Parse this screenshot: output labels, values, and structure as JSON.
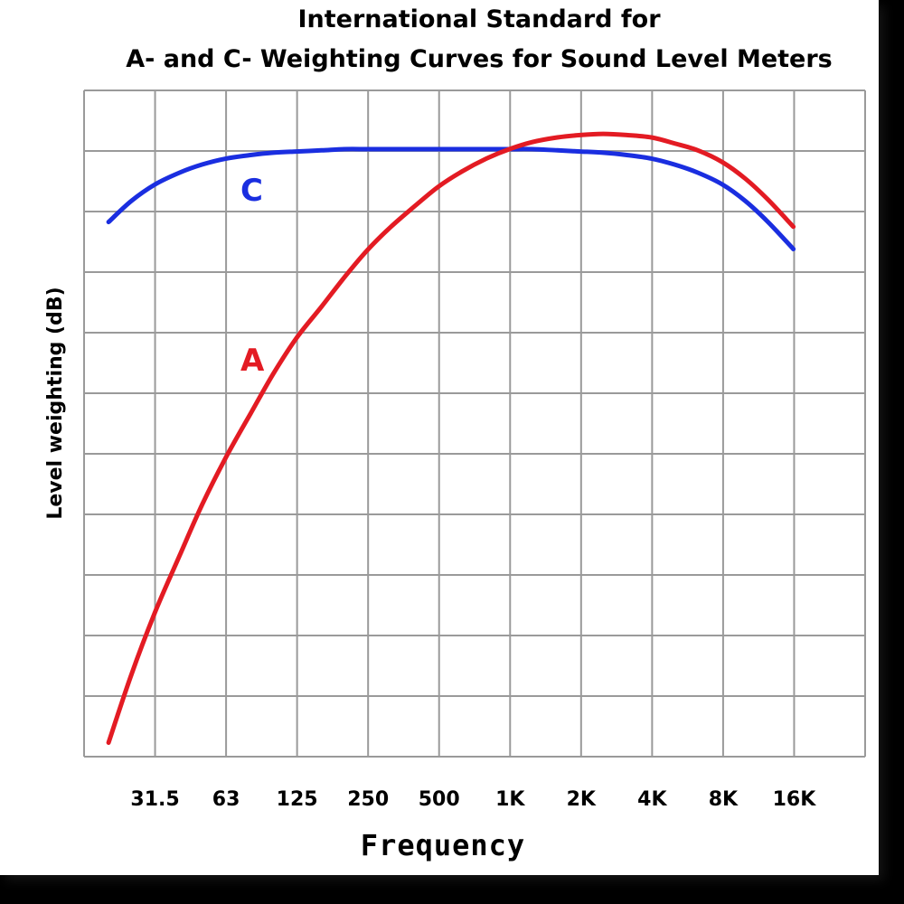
{
  "chart_data": {
    "type": "line",
    "title": "International Standard for",
    "subtitle": "A- and C- Weighting Curves for Sound Level Meters",
    "xlabel": "Frequency",
    "ylabel": "Level weighting (dB)",
    "x_scale": "log",
    "categories": [
      "31.5",
      "63",
      "125",
      "250",
      "500",
      "1K",
      "2K",
      "4K",
      "8K",
      "16K"
    ],
    "grid": true,
    "colors": {
      "A": "#e31b23",
      "C": "#1a2ee0"
    },
    "series": [
      {
        "name": "A",
        "x": [
          20,
          25,
          31.5,
          40,
          50,
          63,
          80,
          100,
          125,
          160,
          200,
          250,
          315,
          400,
          500,
          630,
          800,
          1000,
          1250,
          1600,
          2000,
          2500,
          3150,
          4000,
          5000,
          6300,
          8000,
          10000,
          12500,
          16000,
          20000
        ],
        "values": [
          -50.5,
          -44.7,
          -39.4,
          -34.6,
          -30.2,
          -26.2,
          -22.5,
          -19.1,
          -16.1,
          -13.4,
          -10.9,
          -8.6,
          -6.6,
          -4.8,
          -3.2,
          -1.9,
          -0.8,
          0.0,
          0.6,
          1.0,
          1.2,
          1.3,
          1.2,
          1.0,
          0.5,
          -0.1,
          -1.1,
          -2.5,
          -4.3,
          -6.6,
          -9.3
        ]
      },
      {
        "name": "C",
        "x": [
          20,
          25,
          31.5,
          40,
          50,
          63,
          80,
          100,
          125,
          160,
          200,
          250,
          315,
          400,
          500,
          630,
          800,
          1000,
          1250,
          1600,
          2000,
          2500,
          3150,
          4000,
          5000,
          6300,
          8000,
          10000,
          12500,
          16000,
          20000
        ],
        "values": [
          -6.2,
          -4.4,
          -3.0,
          -2.0,
          -1.3,
          -0.8,
          -0.5,
          -0.3,
          -0.2,
          -0.1,
          0.0,
          0.0,
          0.0,
          0.0,
          0.0,
          0.0,
          0.0,
          0.0,
          0.0,
          -0.1,
          -0.2,
          -0.3,
          -0.5,
          -0.8,
          -1.3,
          -2.0,
          -3.0,
          -4.4,
          -6.2,
          -8.5,
          -11.2
        ]
      }
    ]
  }
}
